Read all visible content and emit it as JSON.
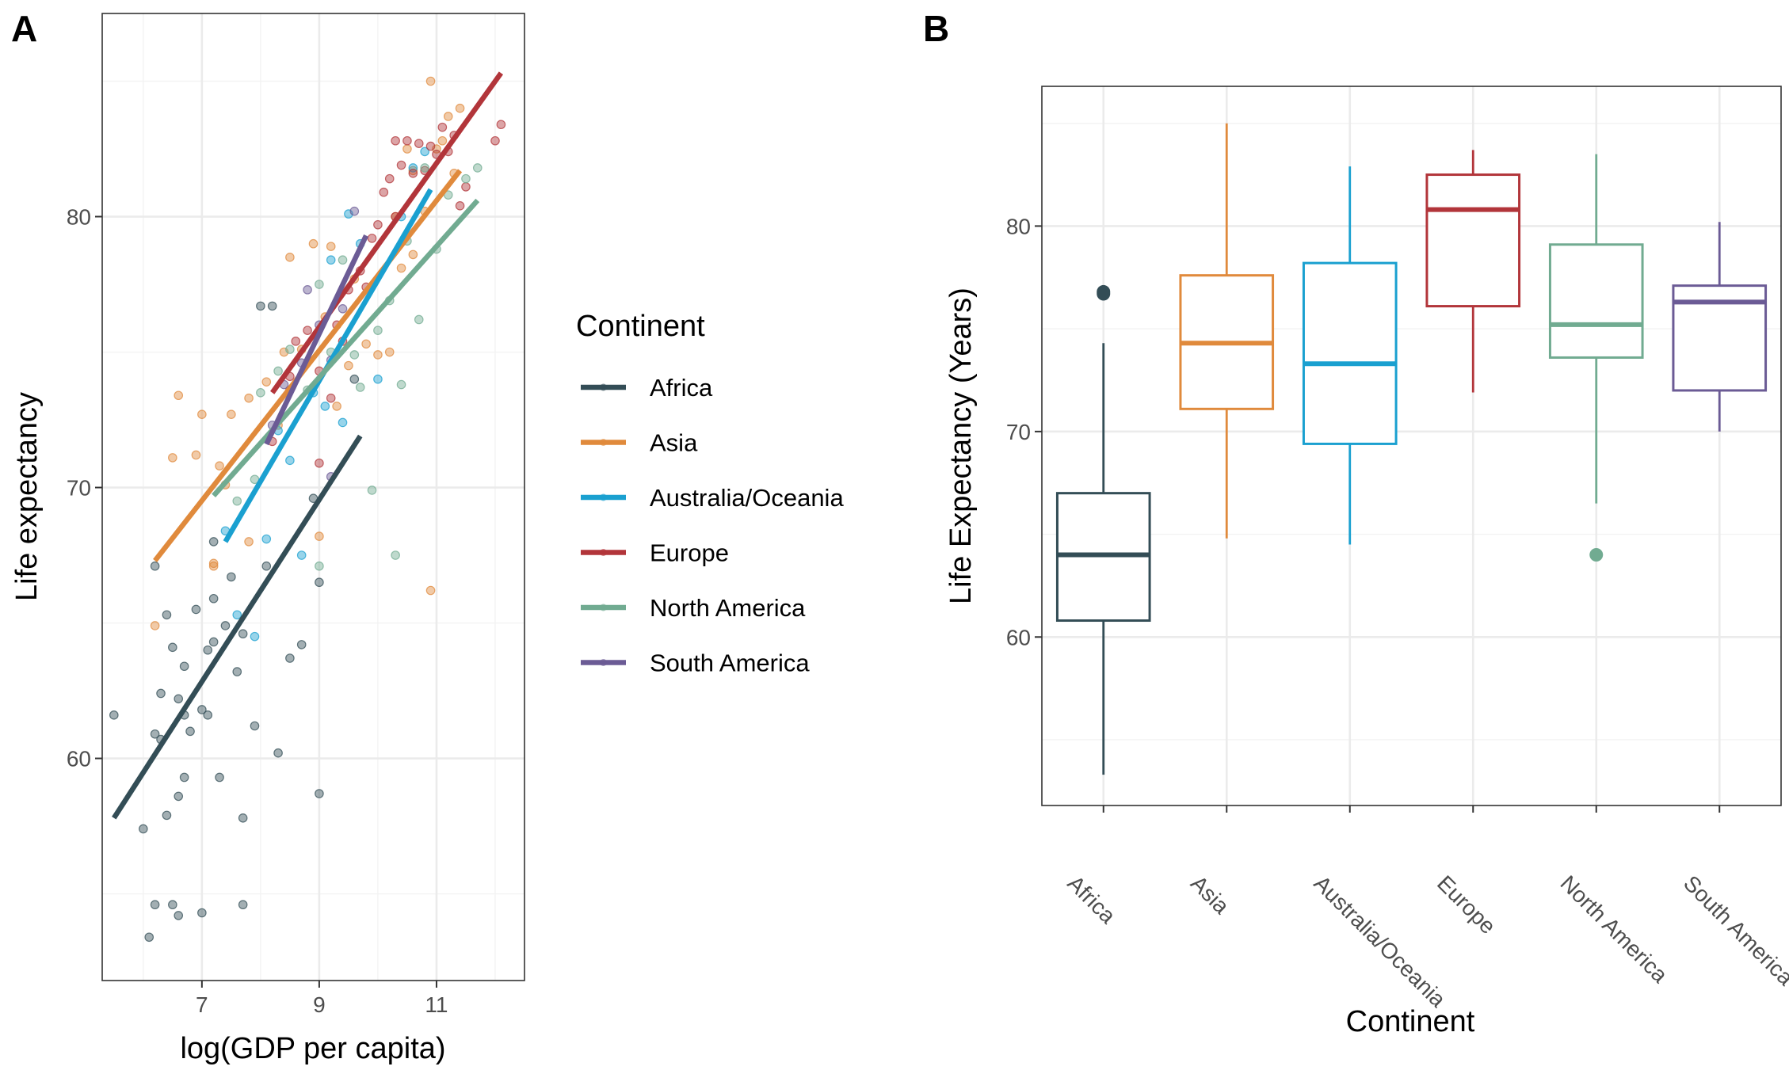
{
  "chart_data": [
    {
      "panel": "A",
      "type": "scatter",
      "xlabel": "log(GDP per capita)",
      "ylabel": "Life expectancy",
      "xlim": [
        5.3,
        12.5
      ],
      "ylim": [
        51.8,
        87.5
      ],
      "x_ticks": [
        7,
        9,
        11
      ],
      "y_ticks": [
        60,
        70,
        80
      ],
      "grid": true,
      "legend": {
        "title": "Continent",
        "placement": "right",
        "entries": [
          "Africa",
          "Asia",
          "Australia/Oceania",
          "Europe",
          "North America",
          "South America"
        ]
      },
      "colors": {
        "Africa": "#334d56",
        "Asia": "#e08a3c",
        "Australia/Oceania": "#1aa0d0",
        "Europe": "#b2353a",
        "North America": "#71ab91",
        "South America": "#6b5b95"
      },
      "series": [
        {
          "name": "Africa",
          "trend": [
            [
              5.5,
              57.8
            ],
            [
              9.7,
              71.9
            ]
          ],
          "points": [
            [
              5.5,
              61.6
            ],
            [
              6.0,
              57.4
            ],
            [
              6.1,
              53.4
            ],
            [
              6.2,
              60.9
            ],
            [
              6.2,
              54.6
            ],
            [
              6.2,
              67.1
            ],
            [
              6.3,
              62.4
            ],
            [
              6.3,
              60.7
            ],
            [
              6.4,
              65.3
            ],
            [
              6.4,
              57.9
            ],
            [
              6.5,
              64.1
            ],
            [
              6.5,
              54.6
            ],
            [
              6.6,
              58.6
            ],
            [
              6.6,
              62.2
            ],
            [
              6.6,
              54.2
            ],
            [
              6.7,
              59.3
            ],
            [
              6.7,
              61.6
            ],
            [
              6.7,
              63.4
            ],
            [
              6.8,
              61.0
            ],
            [
              6.9,
              65.5
            ],
            [
              7.0,
              54.3
            ],
            [
              7.0,
              61.8
            ],
            [
              7.1,
              64.0
            ],
            [
              7.1,
              61.6
            ],
            [
              7.2,
              64.3
            ],
            [
              7.2,
              68.0
            ],
            [
              7.2,
              65.9
            ],
            [
              7.3,
              59.3
            ],
            [
              7.4,
              64.9
            ],
            [
              7.5,
              66.7
            ],
            [
              7.6,
              63.2
            ],
            [
              7.7,
              57.8
            ],
            [
              7.7,
              64.6
            ],
            [
              7.7,
              54.6
            ],
            [
              7.9,
              61.2
            ],
            [
              8.0,
              76.7
            ],
            [
              8.1,
              67.1
            ],
            [
              8.2,
              76.7
            ],
            [
              8.3,
              60.2
            ],
            [
              8.5,
              63.7
            ],
            [
              8.7,
              64.2
            ],
            [
              8.9,
              69.6
            ],
            [
              9.0,
              66.5
            ],
            [
              9.0,
              58.7
            ],
            [
              9.6,
              74.0
            ]
          ]
        },
        {
          "name": "Asia",
          "trend": [
            [
              6.2,
              67.3
            ],
            [
              11.4,
              81.7
            ]
          ],
          "points": [
            [
              6.2,
              64.9
            ],
            [
              6.5,
              71.1
            ],
            [
              6.6,
              73.4
            ],
            [
              6.9,
              71.2
            ],
            [
              7.0,
              72.7
            ],
            [
              7.2,
              67.2
            ],
            [
              7.3,
              70.8
            ],
            [
              7.4,
              70.1
            ],
            [
              7.5,
              72.7
            ],
            [
              7.8,
              73.3
            ],
            [
              7.8,
              68.0
            ],
            [
              8.1,
              73.9
            ],
            [
              8.3,
              72.3
            ],
            [
              8.4,
              75.0
            ],
            [
              8.5,
              78.5
            ],
            [
              8.7,
              75.1
            ],
            [
              8.9,
              79.0
            ],
            [
              9.1,
              76.3
            ],
            [
              9.2,
              78.9
            ],
            [
              9.3,
              73.0
            ],
            [
              9.5,
              74.5
            ],
            [
              9.6,
              77.7
            ],
            [
              9.8,
              75.3
            ],
            [
              10.0,
              74.9
            ],
            [
              10.2,
              75.0
            ],
            [
              10.3,
              80.0
            ],
            [
              10.4,
              78.1
            ],
            [
              10.5,
              82.5
            ],
            [
              10.6,
              78.6
            ],
            [
              10.8,
              80.2
            ],
            [
              10.9,
              85.0
            ],
            [
              11.0,
              82.5
            ],
            [
              11.1,
              82.8
            ],
            [
              11.2,
              83.7
            ],
            [
              11.3,
              81.6
            ],
            [
              11.4,
              84.0
            ],
            [
              10.9,
              66.2
            ],
            [
              10.6,
              81.7
            ],
            [
              9.0,
              68.2
            ],
            [
              7.2,
              67.1
            ]
          ]
        },
        {
          "name": "Australia/Oceania",
          "trend": [
            [
              7.4,
              68.0
            ],
            [
              10.9,
              81.0
            ]
          ],
          "points": [
            [
              7.4,
              68.4
            ],
            [
              7.6,
              65.3
            ],
            [
              7.9,
              64.5
            ],
            [
              8.1,
              68.1
            ],
            [
              8.3,
              72.1
            ],
            [
              8.5,
              71.0
            ],
            [
              8.7,
              67.5
            ],
            [
              8.9,
              73.5
            ],
            [
              9.1,
              73.0
            ],
            [
              9.2,
              78.4
            ],
            [
              9.4,
              72.4
            ],
            [
              9.5,
              80.1
            ],
            [
              9.7,
              79.0
            ],
            [
              10.0,
              74.0
            ],
            [
              10.4,
              80.0
            ],
            [
              10.6,
              81.8
            ],
            [
              10.8,
              82.4
            ]
          ]
        },
        {
          "name": "Europe",
          "trend": [
            [
              8.2,
              73.5
            ],
            [
              12.1,
              85.3
            ]
          ],
          "points": [
            [
              8.2,
              71.7
            ],
            [
              8.5,
              74.1
            ],
            [
              8.6,
              75.4
            ],
            [
              8.8,
              75.8
            ],
            [
              9.0,
              74.3
            ],
            [
              9.2,
              73.3
            ],
            [
              9.3,
              76.0
            ],
            [
              9.4,
              75.4
            ],
            [
              9.5,
              77.3
            ],
            [
              9.7,
              78.0
            ],
            [
              9.8,
              77.4
            ],
            [
              9.9,
              79.2
            ],
            [
              10.0,
              79.7
            ],
            [
              10.1,
              80.9
            ],
            [
              10.2,
              81.4
            ],
            [
              10.3,
              80.0
            ],
            [
              10.4,
              81.9
            ],
            [
              10.5,
              82.8
            ],
            [
              10.6,
              81.6
            ],
            [
              10.7,
              82.7
            ],
            [
              10.8,
              81.7
            ],
            [
              10.9,
              82.6
            ],
            [
              11.0,
              82.3
            ],
            [
              11.1,
              83.3
            ],
            [
              11.2,
              82.4
            ],
            [
              11.3,
              83.0
            ],
            [
              11.4,
              80.4
            ],
            [
              11.5,
              81.1
            ],
            [
              12.0,
              82.8
            ],
            [
              12.1,
              83.4
            ],
            [
              10.3,
              82.8
            ],
            [
              9.0,
              70.9
            ],
            [
              8.5,
              73.6
            ]
          ]
        },
        {
          "name": "North America",
          "trend": [
            [
              7.2,
              69.7
            ],
            [
              11.7,
              80.6
            ]
          ],
          "points": [
            [
              7.6,
              69.5
            ],
            [
              7.9,
              70.3
            ],
            [
              8.0,
              73.5
            ],
            [
              8.3,
              74.3
            ],
            [
              8.5,
              75.1
            ],
            [
              8.8,
              73.6
            ],
            [
              9.0,
              77.5
            ],
            [
              9.0,
              67.1
            ],
            [
              9.2,
              75.0
            ],
            [
              9.4,
              78.4
            ],
            [
              9.6,
              74.9
            ],
            [
              9.7,
              73.7
            ],
            [
              9.9,
              69.9
            ],
            [
              10.0,
              75.8
            ],
            [
              10.2,
              76.9
            ],
            [
              10.3,
              67.5
            ],
            [
              10.4,
              73.8
            ],
            [
              10.5,
              79.1
            ],
            [
              10.7,
              76.2
            ],
            [
              10.8,
              81.8
            ],
            [
              11.0,
              78.8
            ],
            [
              11.2,
              80.8
            ],
            [
              11.5,
              81.4
            ],
            [
              11.7,
              81.8
            ]
          ]
        },
        {
          "name": "South America",
          "trend": [
            [
              8.1,
              71.6
            ],
            [
              9.8,
              79.3
            ]
          ],
          "points": [
            [
              8.2,
              72.3
            ],
            [
              8.4,
              73.8
            ],
            [
              8.7,
              74.6
            ],
            [
              8.8,
              77.3
            ],
            [
              9.0,
              76.0
            ],
            [
              9.2,
              74.7
            ],
            [
              9.4,
              76.6
            ],
            [
              9.6,
              80.2
            ],
            [
              9.2,
              70.4
            ]
          ]
        }
      ]
    },
    {
      "panel": "B",
      "type": "box",
      "xlabel": "Continent",
      "ylabel": "Life Expectancy (Years)",
      "ylim": [
        51.8,
        86.8
      ],
      "y_ticks": [
        60,
        70,
        80
      ],
      "categories": [
        "Africa",
        "Asia",
        "Australia/Oceania",
        "Europe",
        "North America",
        "South America"
      ],
      "grid": true,
      "boxes": [
        {
          "name": "Africa",
          "min": 53.3,
          "q1": 60.8,
          "median": 64.0,
          "q3": 67.0,
          "max": 74.3,
          "outliers": [
            76.8,
            76.7
          ]
        },
        {
          "name": "Asia",
          "min": 64.8,
          "q1": 71.1,
          "median": 74.3,
          "q3": 77.6,
          "max": 85.0,
          "outliers": []
        },
        {
          "name": "Australia/Oceania",
          "min": 64.5,
          "q1": 69.4,
          "median": 73.3,
          "q3": 78.2,
          "max": 82.9,
          "outliers": []
        },
        {
          "name": "Europe",
          "min": 71.9,
          "q1": 76.1,
          "median": 80.8,
          "q3": 82.5,
          "max": 83.7,
          "outliers": []
        },
        {
          "name": "North America",
          "min": 66.5,
          "q1": 73.6,
          "median": 75.2,
          "q3": 79.1,
          "max": 83.5,
          "outliers": [
            64.0
          ]
        },
        {
          "name": "South America",
          "min": 70.0,
          "q1": 72.0,
          "median": 76.3,
          "q3": 77.1,
          "max": 80.2,
          "outliers": []
        }
      ]
    }
  ],
  "panels": {
    "a_tag": "A",
    "b_tag": "B"
  }
}
